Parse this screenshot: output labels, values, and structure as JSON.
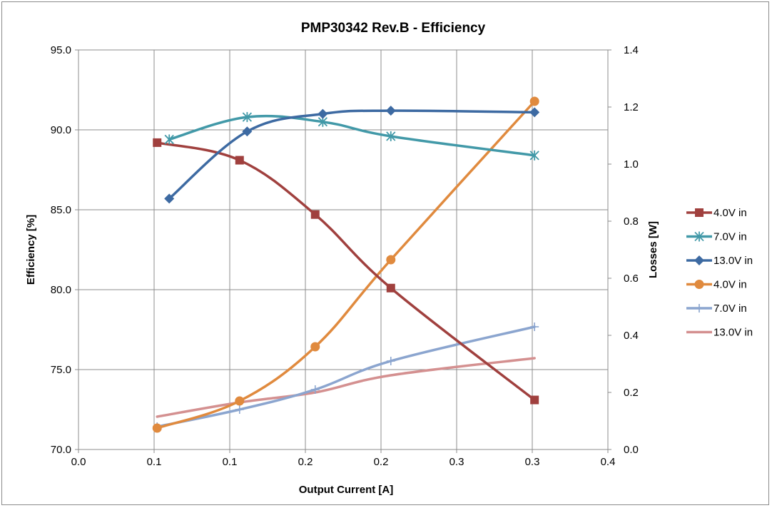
{
  "chart_data": {
    "type": "line",
    "title": "PMP30342 Rev.B - Efficiency",
    "xlabel": "Output Current [A]",
    "ylabel": "Efficiency [%]",
    "y2label": "Losses [W]",
    "xlim": [
      0.0,
      0.35
    ],
    "ylim": [
      70.0,
      95.0
    ],
    "y2lim": [
      0.0,
      1.4
    ],
    "x_tick_values": [
      0.0,
      0.05,
      0.1,
      0.15,
      0.2,
      0.25,
      0.3,
      0.35
    ],
    "x_tick_labels": [
      "0.0",
      "0.1",
      "0.1",
      "0.2",
      "0.2",
      "0.3",
      "0.3",
      "0.4"
    ],
    "y_tick_values": [
      70,
      75,
      80,
      85,
      90,
      95
    ],
    "y_tick_labels": [
      "70.0",
      "75.0",
      "80.0",
      "85.0",
      "90.0",
      "95.0"
    ],
    "y2_tick_values": [
      0.0,
      0.2,
      0.4,
      0.6,
      0.8,
      1.0,
      1.2,
      1.4
    ],
    "y2_tick_labels": [
      "0.0",
      "0.2",
      "0.4",
      "0.6",
      "0.8",
      "1.0",
      "1.2",
      "1.4"
    ],
    "grid": true,
    "legend_position": "right",
    "series": [
      {
        "name": "4.0V in",
        "axis": "left",
        "marker": "square",
        "color": "#a0403e",
        "x": [
          0.052,
          0.1065,
          0.1565,
          0.2065,
          0.3015
        ],
        "y": [
          89.2,
          88.1,
          84.7,
          80.1,
          73.1
        ]
      },
      {
        "name": "7.0V in",
        "axis": "left",
        "marker": "star",
        "color": "#4299a8",
        "x": [
          0.06,
          0.1115,
          0.1615,
          0.2065,
          0.3015
        ],
        "y": [
          89.4,
          90.8,
          90.5,
          89.6,
          88.4
        ]
      },
      {
        "name": "13.0V in",
        "axis": "left",
        "marker": "diamond",
        "color": "#3d6aa2",
        "x": [
          0.06,
          0.1115,
          0.1615,
          0.2065,
          0.3015
        ],
        "y": [
          85.7,
          89.9,
          91.0,
          91.2,
          91.1
        ]
      },
      {
        "name": "4.0V in",
        "axis": "right",
        "marker": "circle",
        "color": "#e08a3e",
        "x": [
          0.052,
          0.1065,
          0.1565,
          0.2065,
          0.3015
        ],
        "y": [
          0.075,
          0.17,
          0.36,
          0.665,
          1.22
        ]
      },
      {
        "name": "7.0V in",
        "axis": "right",
        "marker": "plus",
        "color": "#8ba5cf",
        "x": [
          0.052,
          0.1065,
          0.1565,
          0.2065,
          0.3015
        ],
        "y": [
          0.08,
          0.14,
          0.21,
          0.31,
          0.43
        ]
      },
      {
        "name": "13.0V in",
        "axis": "right",
        "marker": "none",
        "color": "#d49090",
        "x": [
          0.052,
          0.1065,
          0.1565,
          0.2065,
          0.3015
        ],
        "y": [
          0.115,
          0.165,
          0.2,
          0.26,
          0.32
        ]
      }
    ]
  }
}
